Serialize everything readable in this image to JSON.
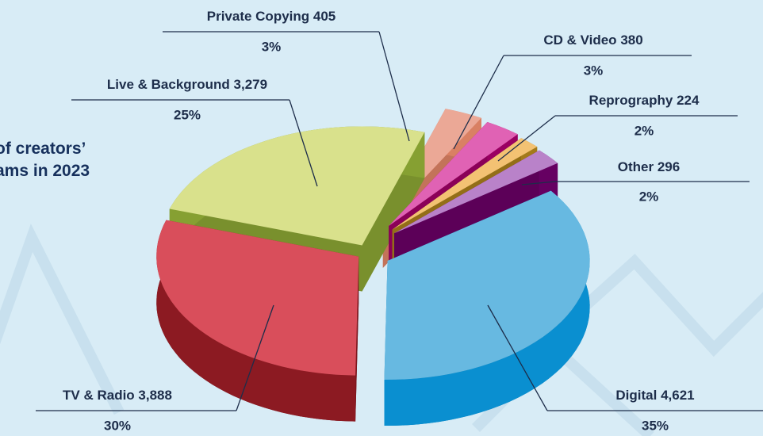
{
  "chart_data": {
    "type": "pie",
    "title_lines": [
      "of creators’",
      "ams in 2023"
    ],
    "categories": [
      "Private Copying",
      "CD & Video",
      "Reprography",
      "Other",
      "Digital",
      "TV & Radio",
      "Live & Background"
    ],
    "values": [
      405,
      380,
      224,
      296,
      4621,
      3888,
      3279
    ],
    "value_labels": [
      "405",
      "380",
      "224",
      "296",
      "4,621",
      "3,888",
      "3,279"
    ],
    "percentages": [
      3,
      3,
      2,
      2,
      35,
      30,
      25
    ],
    "percent_labels": [
      "3%",
      "3%",
      "2%",
      "2%",
      "35%",
      "30%",
      "25%"
    ],
    "colors": [
      "#eba896",
      "#e062b4",
      "#f3c273",
      "#b982c9",
      "#67b9e1",
      "#d94e5b",
      "#d9e18c"
    ]
  }
}
